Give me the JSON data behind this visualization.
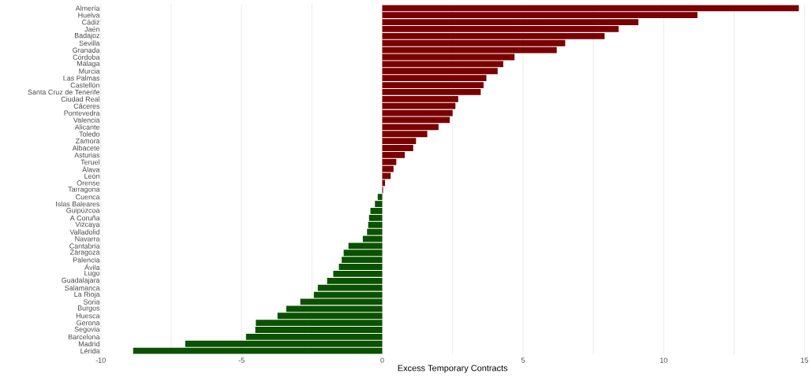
{
  "chart_data": {
    "type": "bar",
    "orientation": "horizontal",
    "xlabel": "Excess Temporary Contracts",
    "categories": [
      "Almería",
      "Huelva",
      "Cádiz",
      "Jaén",
      "Badajoz",
      "Sevilla",
      "Granada",
      "Córdoba",
      "Málaga",
      "Murcia",
      "Las Palmas",
      "Castellón",
      "Santa Cruz de Tenerife",
      "Ciudad Real",
      "Cáceres",
      "Pontevedra",
      "Valencia",
      "Alicante",
      "Toledo",
      "Zamora",
      "Albacete",
      "Asturias",
      "Teruel",
      "Álava",
      "León",
      "Orense",
      "Tarragona",
      "Cuenca",
      "Islas Baleares",
      "Guipúzcoa",
      "A Coruña",
      "Vizcaya",
      "Valladolid",
      "Navarra",
      "Cantabria",
      "Zaragoza",
      "Palencia",
      "Ávila",
      "Lugo",
      "Guadalajara",
      "Salamanca",
      "La Rioja",
      "Soria",
      "Burgos",
      "Huesca",
      "Gerona",
      "Segovia",
      "Barcelona",
      "Madrid",
      "Lérida"
    ],
    "values": [
      14.8,
      11.2,
      9.1,
      8.4,
      7.9,
      6.5,
      6.2,
      4.7,
      4.3,
      4.1,
      3.7,
      3.6,
      3.5,
      2.7,
      2.6,
      2.5,
      2.4,
      2.0,
      1.6,
      1.2,
      1.1,
      0.8,
      0.5,
      0.4,
      0.3,
      0.1,
      0.03,
      -0.16,
      -0.26,
      -0.42,
      -0.47,
      -0.5,
      -0.54,
      -0.69,
      -1.2,
      -1.37,
      -1.44,
      -1.54,
      -1.74,
      -1.96,
      -2.29,
      -2.43,
      -2.91,
      -3.41,
      -3.72,
      -4.49,
      -4.51,
      -4.84,
      -7.0,
      -8.85
    ],
    "colors": [
      "#7a0000",
      "#7a0000",
      "#7a0000",
      "#7a0000",
      "#7a0000",
      "#7a0000",
      "#7a0000",
      "#7a0000",
      "#7a0000",
      "#7a0000",
      "#7a0000",
      "#7a0000",
      "#7a0000",
      "#7a0000",
      "#7a0000",
      "#7a0000",
      "#7a0000",
      "#7a0000",
      "#7a0000",
      "#7a0000",
      "#7a0000",
      "#7a0000",
      "#7a0000",
      "#7a0000",
      "#7a0000",
      "#7a0000",
      "#7a0000",
      "#0a5200",
      "#0a5200",
      "#0a5200",
      "#0a5200",
      "#0a5200",
      "#0a5200",
      "#0a5200",
      "#0a5200",
      "#0a5200",
      "#0a5200",
      "#0a5200",
      "#0a5200",
      "#0a5200",
      "#0a5200",
      "#0a5200",
      "#0a5200",
      "#0a5200",
      "#0a5200",
      "#0a5200",
      "#0a5200",
      "#0a5200",
      "#0a5200",
      "#0a5200"
    ],
    "xlim": [
      -10,
      15
    ],
    "xticks": [
      -10,
      {
        "value": -7.5,
        "label": null
      },
      -5,
      {
        "value": -2.5,
        "label": null
      },
      0,
      {
        "value": 2.5,
        "label": null
      },
      5,
      {
        "value": 7.5,
        "label": null
      },
      10,
      {
        "value": 12.5,
        "label": null
      },
      15
    ],
    "grid": "x"
  }
}
